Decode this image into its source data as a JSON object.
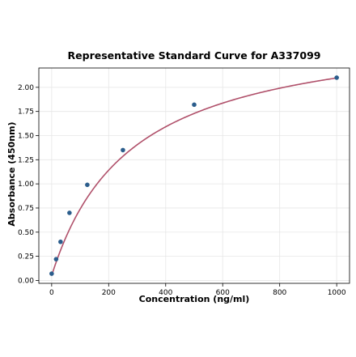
{
  "chart_data": {
    "type": "scatter",
    "title": "Representative Standard Curve for A337099",
    "xlabel": "Concentration (ng/ml)",
    "ylabel": "Absorbance (450nm)",
    "xlim": [
      -45,
      1045
    ],
    "ylim": [
      -0.03,
      2.2
    ],
    "x_ticks": [
      0,
      200,
      400,
      600,
      800,
      1000
    ],
    "y_ticks": [
      0.0,
      0.25,
      0.5,
      0.75,
      1.0,
      1.25,
      1.5,
      1.75,
      2.0
    ],
    "grid": true,
    "points": {
      "x": [
        0,
        15.6,
        31.25,
        62.5,
        125,
        250,
        500,
        1000
      ],
      "y": [
        0.07,
        0.22,
        0.4,
        0.7,
        0.99,
        1.35,
        1.82,
        2.1
      ],
      "color": "#2b5d8c"
    },
    "fit_curve": {
      "model": "4PL",
      "A": 0.05,
      "B": 1.0,
      "C": 280,
      "D": 2.67,
      "color": "#b0506a"
    }
  }
}
